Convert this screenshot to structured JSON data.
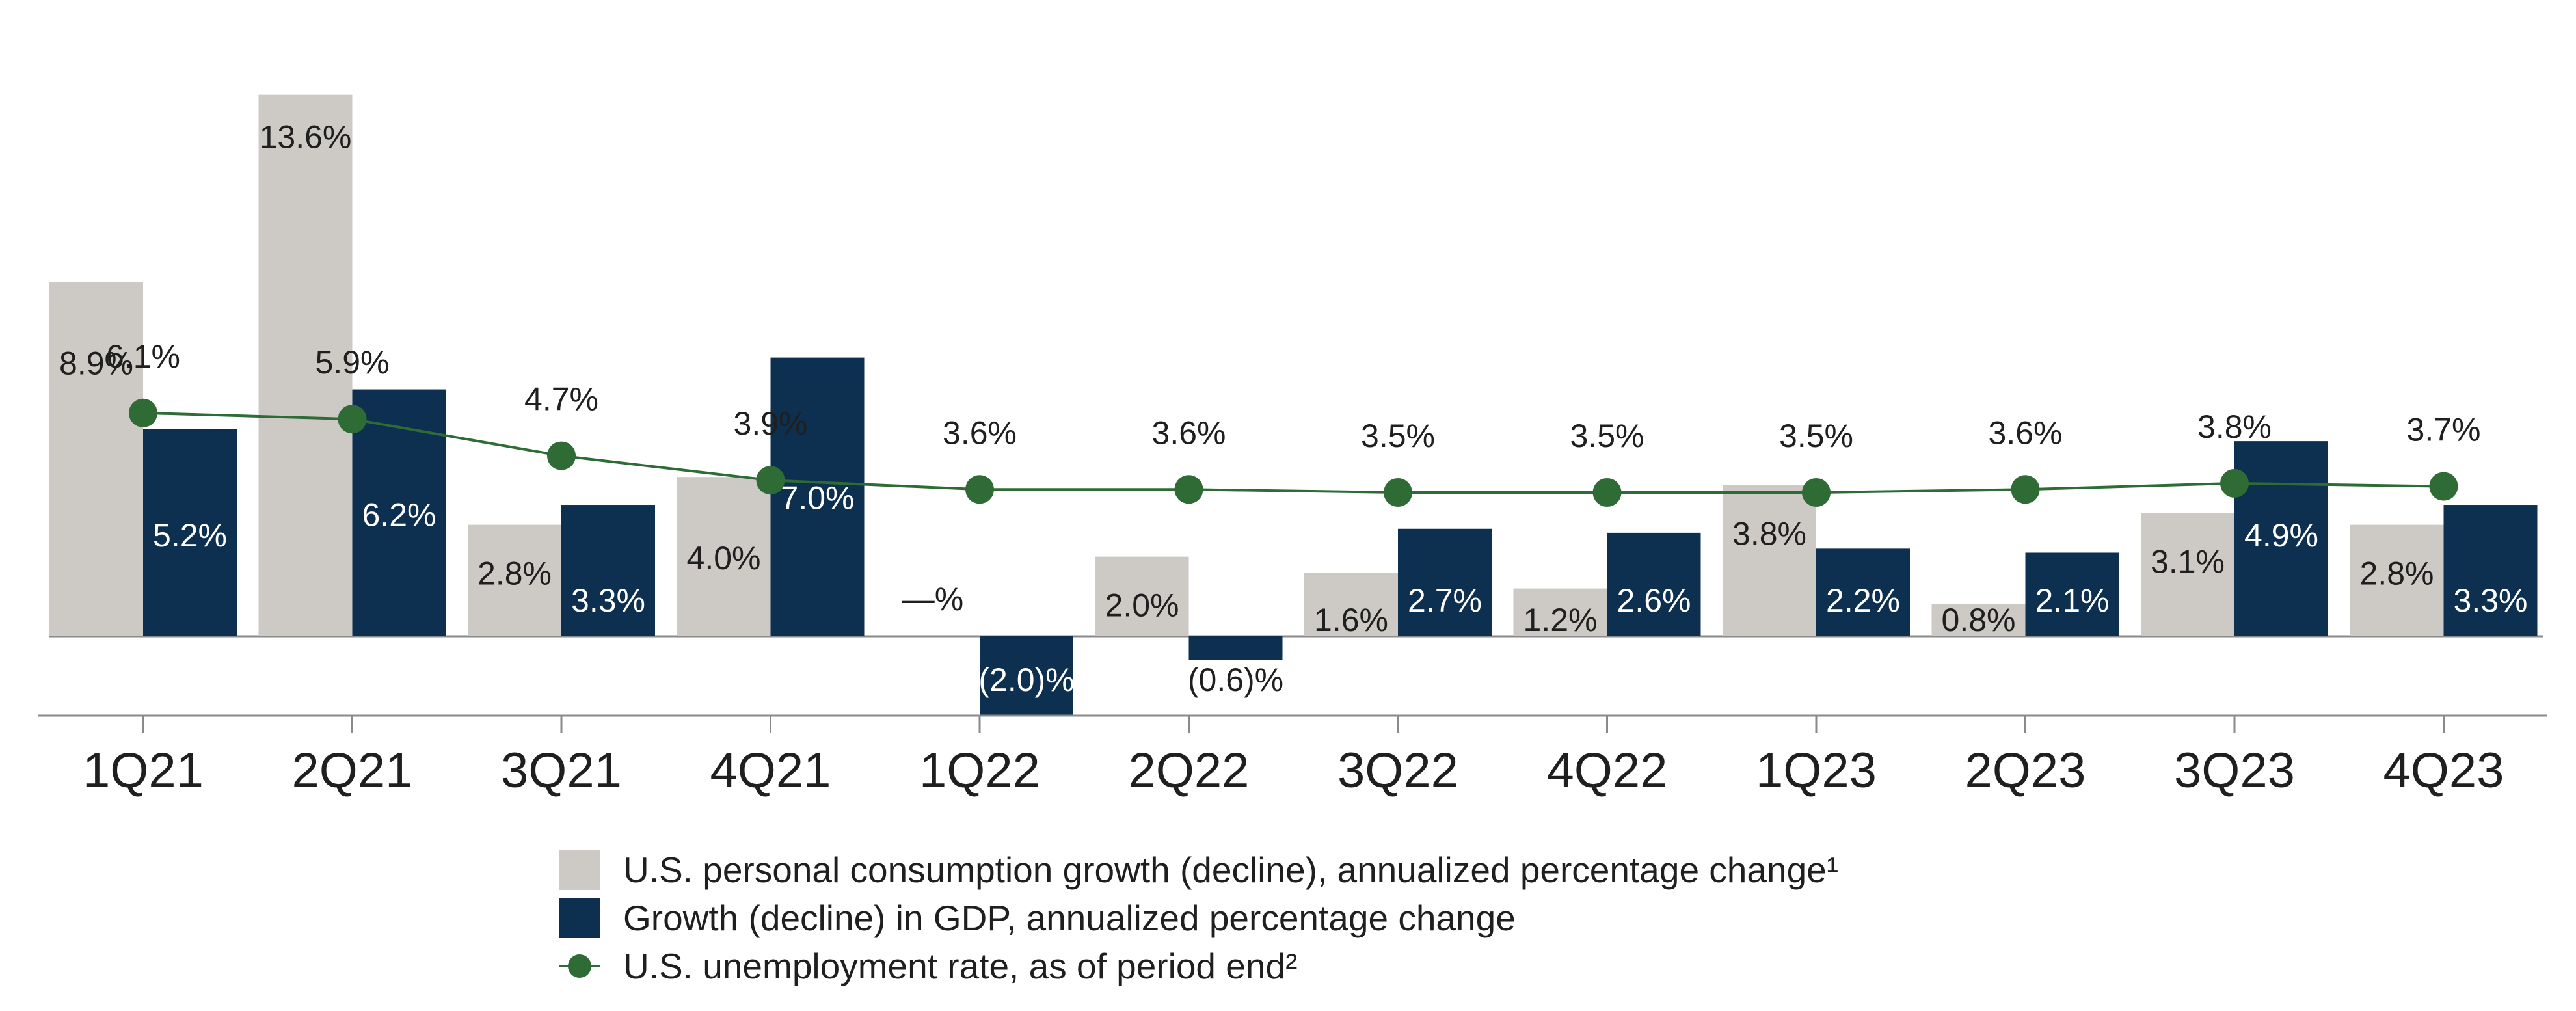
{
  "chart_data": {
    "type": "bar",
    "categories": [
      "1Q21",
      "2Q21",
      "3Q21",
      "4Q21",
      "1Q22",
      "2Q22",
      "3Q22",
      "4Q22",
      "1Q23",
      "2Q23",
      "3Q23",
      "4Q23"
    ],
    "series": [
      {
        "name": "U.S. personal consumption growth (decline), annualized percentage change¹",
        "type": "bar",
        "color": "#cdcac6",
        "values": [
          8.9,
          13.6,
          2.8,
          4.0,
          0.0,
          2.0,
          1.6,
          1.2,
          3.8,
          0.8,
          3.1,
          2.8
        ],
        "labels": [
          "8.9%",
          "13.6%",
          "2.8%",
          "4.0%",
          "—%",
          "2.0%",
          "1.6%",
          "1.2%",
          "3.8%",
          "0.8%",
          "3.1%",
          "2.8%"
        ]
      },
      {
        "name": "Growth (decline) in GDP, annualized percentage change",
        "type": "bar",
        "color": "#0d3050",
        "values": [
          5.2,
          6.2,
          3.3,
          7.0,
          -2.0,
          -0.6,
          2.7,
          2.6,
          2.2,
          2.1,
          4.9,
          3.3
        ],
        "labels": [
          "5.2%",
          "6.2%",
          "3.3%",
          "7.0%",
          "(2.0)%",
          "(0.6)%",
          "2.7%",
          "2.6%",
          "2.2%",
          "2.1%",
          "4.9%",
          "3.3%"
        ]
      },
      {
        "name": "U.S. unemployment rate, as of period end²",
        "type": "line",
        "color": "#2e6b35",
        "values": [
          6.1,
          5.9,
          4.7,
          3.9,
          3.6,
          3.6,
          3.5,
          3.5,
          3.5,
          3.6,
          3.8,
          3.7
        ],
        "labels": [
          "6.1%",
          "5.9%",
          "4.7%",
          "3.9%",
          "3.6%",
          "3.6%",
          "3.5%",
          "3.5%",
          "3.5%",
          "3.6%",
          "3.8%",
          "3.7%"
        ]
      }
    ],
    "ylim": [
      -2,
      13.6
    ],
    "grid": false,
    "legend_position": "bottom"
  }
}
